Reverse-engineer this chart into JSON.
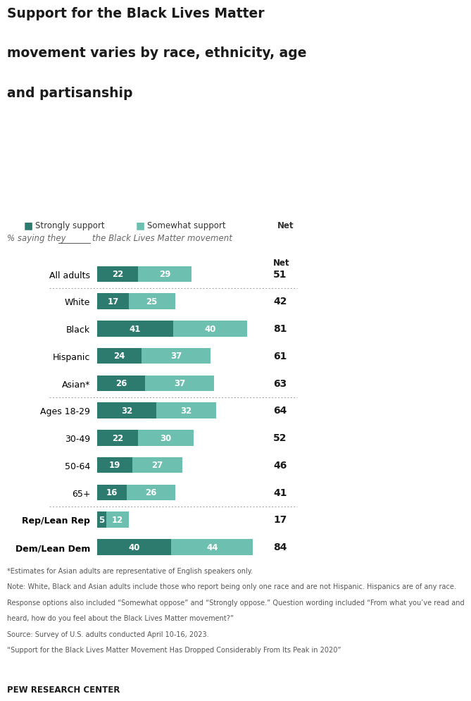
{
  "title_line1": "Support for the Black Lives Matter",
  "title_line2": "movement varies by race, ethnicity, age",
  "title_line3": "and partisanship",
  "subtitle_pre": "% saying they",
  "subtitle_post": "the Black Lives Matter movement",
  "categories": [
    "All adults",
    "White",
    "Black",
    "Hispanic",
    "Asian*",
    "Ages 18-29",
    "30-49",
    "50-64",
    "65+",
    "Rep/Lean Rep",
    "Dem/Lean Dem"
  ],
  "strong": [
    22,
    17,
    41,
    24,
    26,
    32,
    22,
    19,
    16,
    5,
    40
  ],
  "somewhat": [
    29,
    25,
    40,
    37,
    37,
    32,
    30,
    27,
    26,
    12,
    44
  ],
  "net": [
    51,
    42,
    81,
    61,
    63,
    64,
    52,
    46,
    41,
    17,
    84
  ],
  "bold_labels": [
    "Rep/Lean Rep",
    "Dem/Lean Dem"
  ],
  "group_separators_after_idx": [
    0,
    4,
    8
  ],
  "color_strong": "#2d7a6e",
  "color_somewhat": "#6dbfb0",
  "bar_height": 0.58,
  "footnote_lines": [
    "*Estimates for Asian adults are representative of English speakers only.",
    "Note: White, Black and Asian adults include those who report being only one race and are not Hispanic. Hispanics are of any race.",
    "Response options also included “Somewhat oppose” and “Strongly oppose.” Question wording included “From what you’ve read and",
    "heard, how do you feel about the Black Lives Matter movement?”",
    "Source: Survey of U.S. adults conducted April 10-16, 2023.",
    "“Support for the Black Lives Matter Movement Has Dropped Considerably From Its Peak in 2020”"
  ],
  "source_label": "PEW RESEARCH CENTER",
  "xlim_max": 90,
  "background_color": "#ffffff",
  "text_color": "#1a1a1a",
  "separator_color": "#aaaaaa",
  "footnote_color": "#555555",
  "legend_label_strong": "Strongly support",
  "legend_label_somewhat": "Somewhat support",
  "net_label": "Net"
}
